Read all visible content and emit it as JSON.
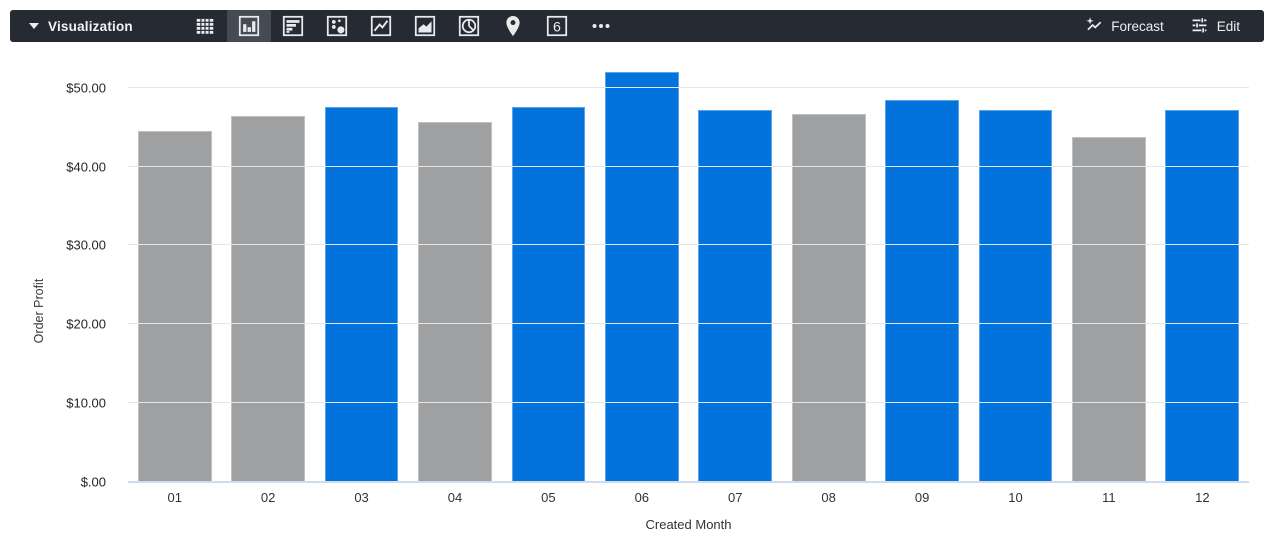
{
  "toolbar": {
    "title": "Visualization",
    "viz_types": [
      {
        "id": "table",
        "icon": "table-icon",
        "selected": false
      },
      {
        "id": "bar",
        "icon": "bar-chart-icon",
        "selected": true
      },
      {
        "id": "row",
        "icon": "horizontal-bar-icon",
        "selected": false
      },
      {
        "id": "scatter",
        "icon": "scatter-plot-icon",
        "selected": false
      },
      {
        "id": "line",
        "icon": "line-chart-icon",
        "selected": false
      },
      {
        "id": "area",
        "icon": "area-chart-icon",
        "selected": false
      },
      {
        "id": "pie",
        "icon": "pie-chart-icon",
        "selected": false
      },
      {
        "id": "map",
        "icon": "map-pin-icon",
        "selected": false
      },
      {
        "id": "single-value",
        "icon": "single-value-icon",
        "selected": false,
        "glyph": "6"
      },
      {
        "id": "more",
        "icon": "more-ellipsis-icon",
        "selected": false
      }
    ],
    "forecast_label": "Forecast",
    "edit_label": "Edit"
  },
  "colors": {
    "toolbar_bg": "#262b33",
    "toolbar_selected_bg": "#454b53",
    "icon_color": "#e8eaed",
    "bar_blue": "#0273dc",
    "bar_gray": "#9fa0a1",
    "gridline": "#e6e6e6",
    "baseline": "#cfdceb"
  },
  "chart_data": {
    "type": "bar",
    "title": "",
    "xlabel": "Created Month",
    "ylabel": "Order Profit",
    "categories": [
      "01",
      "02",
      "03",
      "04",
      "05",
      "06",
      "07",
      "08",
      "09",
      "10",
      "11",
      "12"
    ],
    "values": [
      44.5,
      46.4,
      47.6,
      45.6,
      47.5,
      52.0,
      47.2,
      46.6,
      48.5,
      47.2,
      43.7,
      47.2
    ],
    "bar_colors": [
      "#9fa0a1",
      "#9fa0a1",
      "#0273dc",
      "#9fa0a1",
      "#0273dc",
      "#0273dc",
      "#0273dc",
      "#9fa0a1",
      "#0273dc",
      "#0273dc",
      "#9fa0a1",
      "#0273dc"
    ],
    "ylim": [
      0,
      53
    ],
    "grid": true,
    "legend_position": "none",
    "yticks": [
      {
        "value": 0,
        "label": "$.00"
      },
      {
        "value": 10,
        "label": "$10.00"
      },
      {
        "value": 20,
        "label": "$20.00"
      },
      {
        "value": 30,
        "label": "$30.00"
      },
      {
        "value": 40,
        "label": "$40.00"
      },
      {
        "value": 50,
        "label": "$50.00"
      }
    ]
  }
}
